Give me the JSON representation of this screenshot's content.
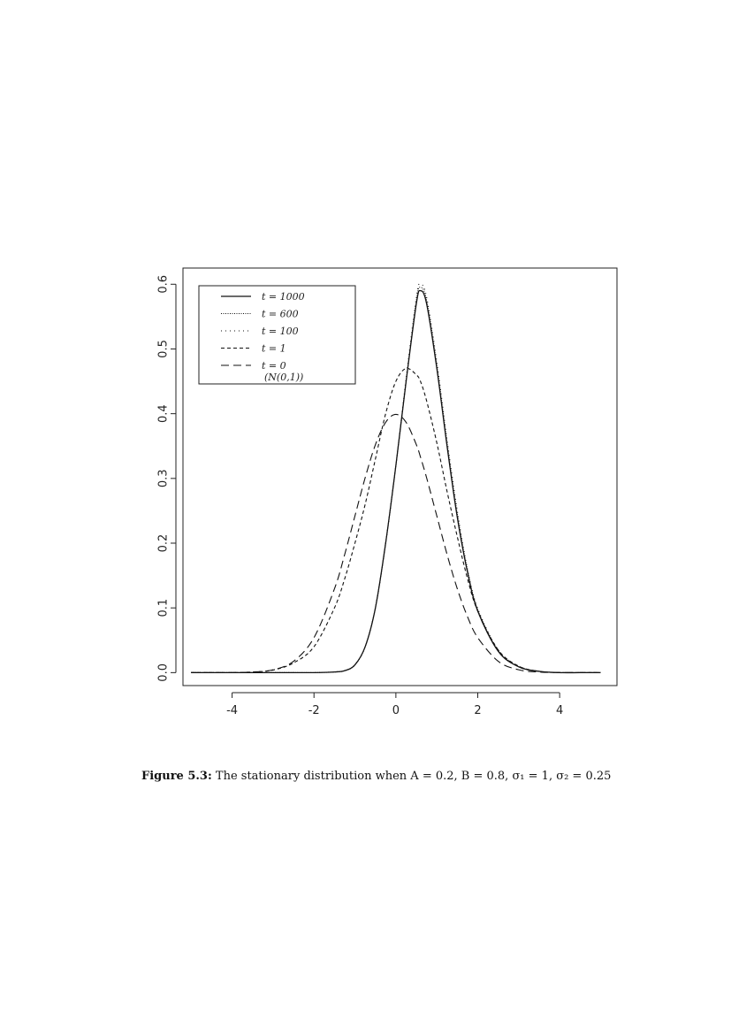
{
  "chart_data": {
    "type": "line",
    "title": "",
    "xlabel": "",
    "ylabel": "",
    "xlim": [
      -5.2,
      5.4
    ],
    "ylim": [
      -0.02,
      0.625
    ],
    "x_ticks": [
      -4,
      -2,
      0,
      2,
      4
    ],
    "x_tick_labels": [
      "-4",
      "-2",
      "0",
      "2",
      "4"
    ],
    "y_ticks": [
      0.0,
      0.1,
      0.2,
      0.3,
      0.4,
      0.5,
      0.6
    ],
    "y_tick_labels": [
      "0.0",
      "0.1",
      "0.2",
      "0.3",
      "0.4",
      "0.5",
      "0.6"
    ],
    "grid": false,
    "legend_position": "top-left",
    "x": [
      -5,
      -4.5,
      -4,
      -3.5,
      -3,
      -2.5,
      -2,
      -1.5,
      -1.25,
      -1,
      -0.75,
      -0.5,
      -0.25,
      0,
      0.25,
      0.5,
      0.6,
      0.75,
      1,
      1.25,
      1.5,
      1.75,
      2,
      2.5,
      3,
      3.5,
      4,
      4.5,
      5
    ],
    "series": [
      {
        "name": "t = 1000",
        "style": "solid",
        "values": [
          0,
          0,
          0,
          0,
          0,
          0,
          0,
          0.001,
          0.003,
          0.012,
          0.04,
          0.1,
          0.2,
          0.32,
          0.45,
          0.57,
          0.59,
          0.57,
          0.47,
          0.35,
          0.24,
          0.155,
          0.095,
          0.033,
          0.009,
          0.002,
          0,
          0,
          0
        ]
      },
      {
        "name": "t = 600",
        "style": "dotted-dense",
        "values": [
          0,
          0,
          0,
          0,
          0,
          0,
          0,
          0.001,
          0.003,
          0.012,
          0.04,
          0.1,
          0.2,
          0.32,
          0.45,
          0.575,
          0.595,
          0.575,
          0.475,
          0.355,
          0.245,
          0.158,
          0.097,
          0.034,
          0.009,
          0.002,
          0,
          0,
          0
        ]
      },
      {
        "name": "t = 100",
        "style": "dotted",
        "values": [
          0,
          0,
          0,
          0,
          0,
          0,
          0,
          0.001,
          0.003,
          0.012,
          0.04,
          0.1,
          0.2,
          0.32,
          0.455,
          0.58,
          0.6,
          0.58,
          0.48,
          0.36,
          0.25,
          0.16,
          0.099,
          0.035,
          0.01,
          0.002,
          0,
          0,
          0
        ]
      },
      {
        "name": "t = 1",
        "style": "short-dash",
        "values": [
          0,
          0,
          0,
          0.001,
          0.004,
          0.015,
          0.04,
          0.1,
          0.145,
          0.2,
          0.26,
          0.33,
          0.4,
          0.45,
          0.47,
          0.46,
          0.45,
          0.42,
          0.355,
          0.28,
          0.21,
          0.145,
          0.095,
          0.035,
          0.01,
          0.002,
          0,
          0,
          0
        ]
      },
      {
        "name": "t = 0",
        "style": "long-dash",
        "values": [
          0,
          0,
          0.0001,
          0.0009,
          0.0044,
          0.0175,
          0.054,
          0.1295,
          0.1826,
          0.242,
          0.3011,
          0.3521,
          0.3867,
          0.3989,
          0.3867,
          0.3521,
          0.3332,
          0.3011,
          0.242,
          0.1826,
          0.1295,
          0.0863,
          0.054,
          0.0175,
          0.0044,
          0.0009,
          0.0001,
          0,
          0
        ]
      }
    ],
    "legend_extra_label": "(N(0,1))"
  },
  "caption": {
    "label": "Figure 5.3:",
    "text": " The stationary distribution when A = 0.2, B = 0.8, σ₁ = 1, σ₂ = 0.25"
  }
}
